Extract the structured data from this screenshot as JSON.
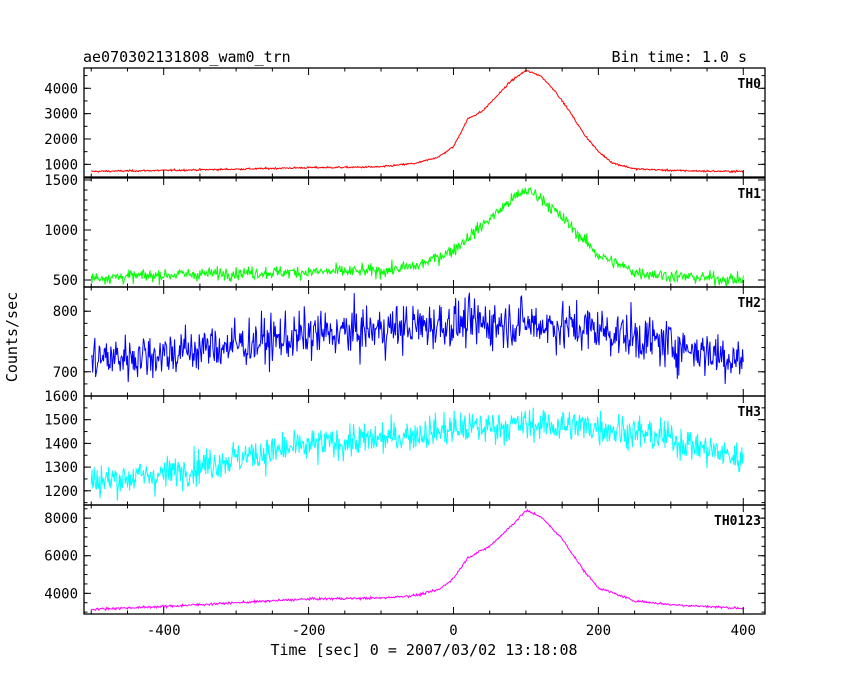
{
  "header": {
    "title": "ae070302131808_wam0_trn",
    "bin_time": "Bin time: 1.0 s"
  },
  "chart_data": {
    "type": "line",
    "title": "ae070302131808_wam0_trn",
    "subtitle": "Bin time: 1.0 s",
    "xlabel": "Time [sec] 0 = 2007/03/02 13:18:08",
    "ylabel": "Counts/sec",
    "xlim": [
      -510,
      430
    ],
    "xticks": [
      -400,
      -200,
      0,
      200,
      400
    ],
    "grid": false,
    "legend": "none",
    "panels": [
      {
        "name": "TH0",
        "color": "#ff0000",
        "ylim": [
          500,
          4800
        ],
        "yticks": [
          1000,
          2000,
          3000,
          4000
        ],
        "ytick_labels": [
          "1000",
          "2000",
          "3000",
          "4000"
        ],
        "x": [
          -500,
          -400,
          -300,
          -200,
          -150,
          -100,
          -50,
          -20,
          0,
          20,
          40,
          60,
          80,
          100,
          120,
          140,
          160,
          180,
          200,
          220,
          250,
          300,
          350,
          400
        ],
        "y": [
          720,
          760,
          810,
          870,
          880,
          900,
          1050,
          1300,
          1700,
          2800,
          3100,
          3700,
          4300,
          4700,
          4500,
          3900,
          3100,
          2200,
          1500,
          1050,
          820,
          760,
          730,
          720
        ],
        "noise": 25
      },
      {
        "name": "TH1",
        "color": "#00ff00",
        "ylim": [
          430,
          1520
        ],
        "yticks": [
          500,
          1000,
          1500
        ],
        "ytick_labels": [
          "500",
          "1000",
          "1500"
        ],
        "x": [
          -500,
          -400,
          -300,
          -200,
          -100,
          -50,
          0,
          40,
          80,
          100,
          120,
          160,
          200,
          250,
          300,
          350,
          400
        ],
        "y": [
          520,
          550,
          570,
          580,
          590,
          640,
          800,
          1050,
          1300,
          1400,
          1330,
          1050,
          750,
          580,
          540,
          520,
          500
        ],
        "noise": 45
      },
      {
        "name": "TH2",
        "color": "#0000ff",
        "ylim": [
          660,
          840
        ],
        "yticks": [
          700,
          800
        ],
        "ytick_labels": [
          "700",
          "800"
        ],
        "x": [
          -500,
          -400,
          -300,
          -200,
          -100,
          0,
          100,
          200,
          300,
          400
        ],
        "y": [
          720,
          730,
          745,
          760,
          770,
          780,
          780,
          770,
          745,
          720
        ],
        "noise": 28
      },
      {
        "name": "TH3",
        "color": "#00ffff",
        "ylim": [
          1140,
          1600
        ],
        "yticks": [
          1200,
          1300,
          1400,
          1500,
          1600
        ],
        "ytick_labels": [
          "1200",
          "1300",
          "1400",
          "1500",
          "1600"
        ],
        "x": [
          -500,
          -400,
          -300,
          -200,
          -100,
          0,
          100,
          200,
          300,
          400
        ],
        "y": [
          1240,
          1270,
          1340,
          1390,
          1420,
          1460,
          1480,
          1470,
          1420,
          1330
        ],
        "noise": 50
      },
      {
        "name": "TH0123",
        "color": "#ff00ff",
        "ylim": [
          2900,
          8700
        ],
        "yticks": [
          4000,
          6000,
          8000
        ],
        "ytick_labels": [
          "4000",
          "6000",
          "8000"
        ],
        "x": [
          -500,
          -400,
          -300,
          -200,
          -100,
          -50,
          -20,
          0,
          20,
          50,
          80,
          100,
          120,
          150,
          180,
          200,
          250,
          300,
          350,
          400
        ],
        "y": [
          3150,
          3300,
          3500,
          3700,
          3750,
          3900,
          4200,
          4800,
          5900,
          6500,
          7600,
          8400,
          8100,
          6900,
          5200,
          4300,
          3600,
          3400,
          3300,
          3200
        ],
        "noise": 45
      }
    ]
  }
}
